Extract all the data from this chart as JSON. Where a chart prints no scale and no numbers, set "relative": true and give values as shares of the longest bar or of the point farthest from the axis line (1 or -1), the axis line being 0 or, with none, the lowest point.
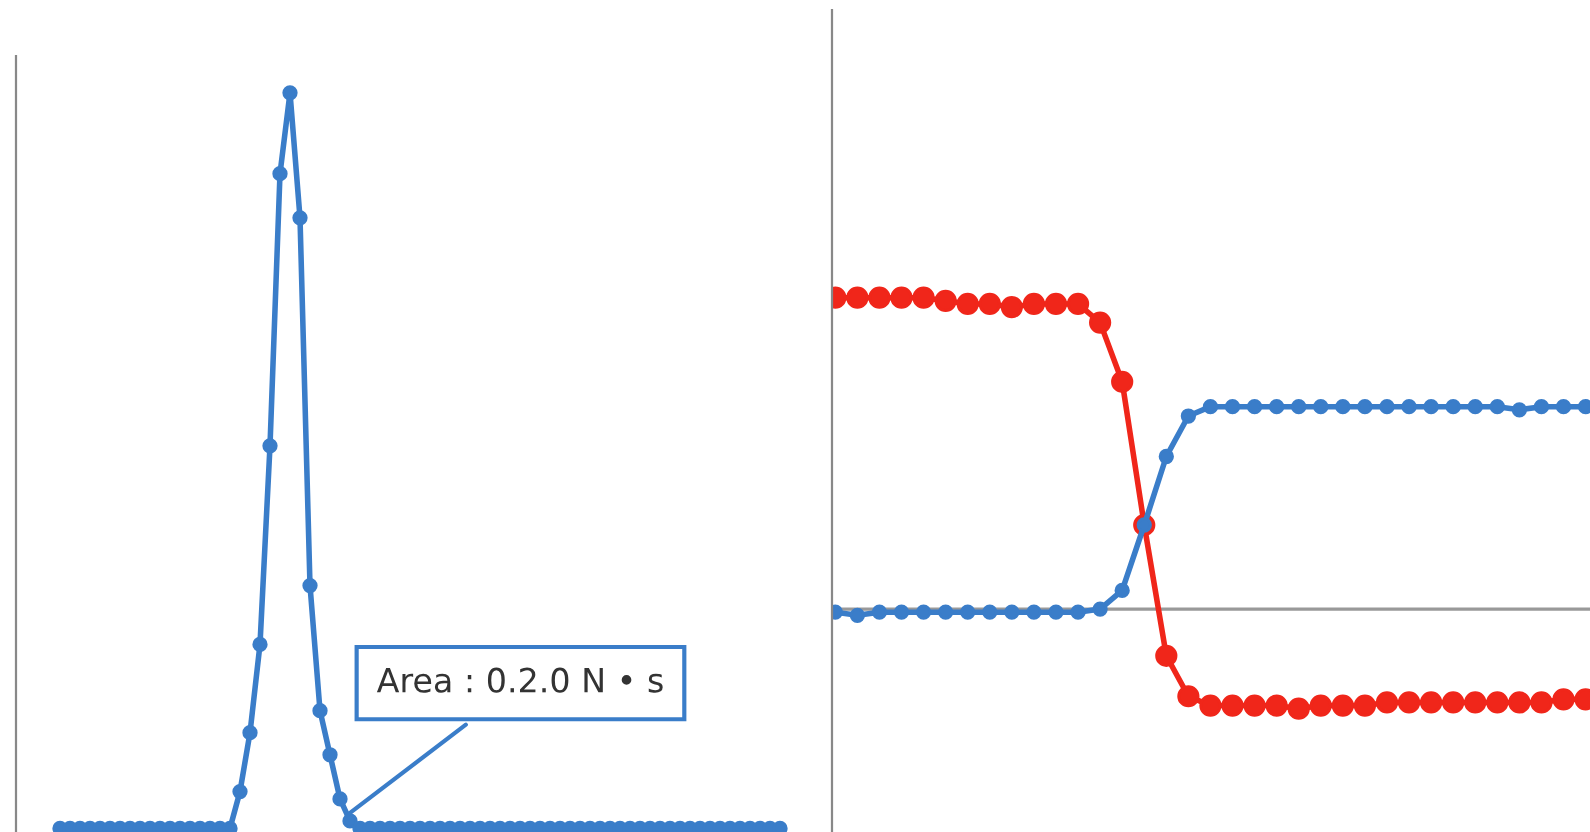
{
  "chart_data": [
    {
      "type": "line",
      "relative": true,
      "marker": "circle",
      "line_style": "solid",
      "annotations": [
        "Area : 0.2.0 N • s"
      ],
      "categories": [
        null,
        null,
        null,
        null,
        null,
        null,
        null,
        null,
        null,
        null,
        null,
        null,
        null,
        null,
        null,
        null,
        null,
        null,
        null,
        null,
        null,
        null,
        null,
        null,
        null,
        null,
        null,
        null,
        null,
        null,
        null,
        null,
        null,
        null,
        null,
        null,
        null,
        null,
        null,
        null,
        null,
        null,
        null,
        null,
        null,
        null,
        null,
        null,
        null,
        null,
        null,
        null,
        null,
        null,
        null,
        null,
        null,
        null,
        null,
        null,
        null,
        null,
        null,
        null,
        null,
        null,
        null,
        null,
        null,
        null,
        null,
        null,
        null
      ],
      "series": [
        {
          "color": "#3a7dc9",
          "values": [
            0,
            0,
            0,
            0,
            0,
            0,
            0,
            0,
            0,
            0,
            0,
            0,
            0,
            0,
            0,
            0,
            0,
            0,
            0.05,
            0.13,
            0.25,
            0.52,
            0.89,
            1.0,
            0.83,
            0.33,
            0.16,
            0.1,
            0.04,
            0.01,
            0,
            0,
            0,
            0,
            0,
            0,
            0,
            0,
            0,
            0,
            0,
            0,
            0,
            0,
            0,
            0,
            0,
            0,
            0,
            0,
            0,
            0,
            0,
            0,
            0,
            0,
            0,
            0,
            0,
            0,
            0,
            0,
            0,
            0,
            0,
            0,
            0,
            0,
            0,
            0,
            0,
            0,
            0
          ]
        }
      ]
    },
    {
      "type": "line",
      "relative": true,
      "marker": "circle",
      "line_style": "solid",
      "categories": [
        null,
        null,
        null,
        null,
        null,
        null,
        null,
        null,
        null,
        null,
        null,
        null,
        null,
        null,
        null,
        null,
        null,
        null,
        null,
        null,
        null,
        null,
        null,
        null,
        null,
        null,
        null,
        null,
        null,
        null,
        null,
        null,
        null,
        null,
        null
      ],
      "series": [
        {
          "color": "#f0261a",
          "values": [
            1.0,
            1.0,
            1.0,
            1.0,
            1.0,
            0.99,
            0.98,
            0.98,
            0.97,
            0.98,
            0.98,
            0.98,
            0.92,
            0.73,
            0.27,
            -0.15,
            -0.28,
            -0.31,
            -0.31,
            -0.31,
            -0.31,
            -0.32,
            -0.31,
            -0.31,
            -0.31,
            -0.3,
            -0.3,
            -0.3,
            -0.3,
            -0.3,
            -0.3,
            -0.3,
            -0.3,
            -0.29,
            -0.29
          ]
        },
        {
          "color": "#3a7dc9",
          "values": [
            -0.01,
            -0.02,
            -0.01,
            -0.01,
            -0.01,
            -0.01,
            -0.01,
            -0.01,
            -0.01,
            -0.01,
            -0.01,
            -0.01,
            0.0,
            0.06,
            0.27,
            0.49,
            0.62,
            0.65,
            0.65,
            0.65,
            0.65,
            0.65,
            0.65,
            0.65,
            0.65,
            0.65,
            0.65,
            0.65,
            0.65,
            0.65,
            0.65,
            0.64,
            0.65,
            0.65,
            0.65
          ]
        }
      ]
    }
  ]
}
